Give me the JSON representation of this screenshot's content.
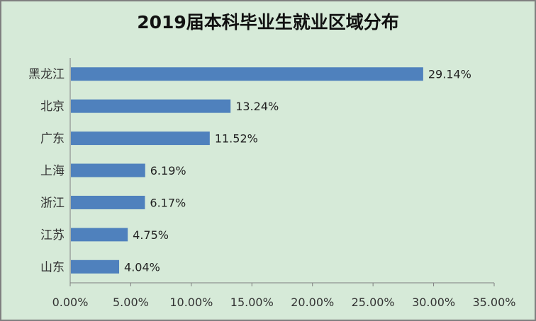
{
  "chart_data": {
    "type": "bar",
    "orientation": "horizontal",
    "title": "2019届本科毕业生就业区域分布",
    "categories": [
      "黑龙江",
      "北京",
      "广东",
      "上海",
      "浙江",
      "江苏",
      "山东"
    ],
    "values": [
      29.14,
      13.24,
      11.52,
      6.19,
      6.17,
      4.75,
      4.04
    ],
    "data_labels": [
      "29.14%",
      "13.24%",
      "11.52%",
      "6.19%",
      "6.17%",
      "4.75%",
      "4.04%"
    ],
    "xlim": [
      0,
      35
    ],
    "x_ticks": [
      0,
      5,
      10,
      15,
      20,
      25,
      30,
      35
    ],
    "x_tick_labels": [
      "0.00%",
      "5.00%",
      "10.00%",
      "15.00%",
      "20.00%",
      "25.00%",
      "30.00%",
      "35.00%"
    ],
    "xlabel": "",
    "ylabel": "",
    "grid": false,
    "legend": "none",
    "colors": {
      "bar": "#4f81bd",
      "plot_background": "#d6ead8",
      "axis": "#7f7f7f"
    }
  }
}
